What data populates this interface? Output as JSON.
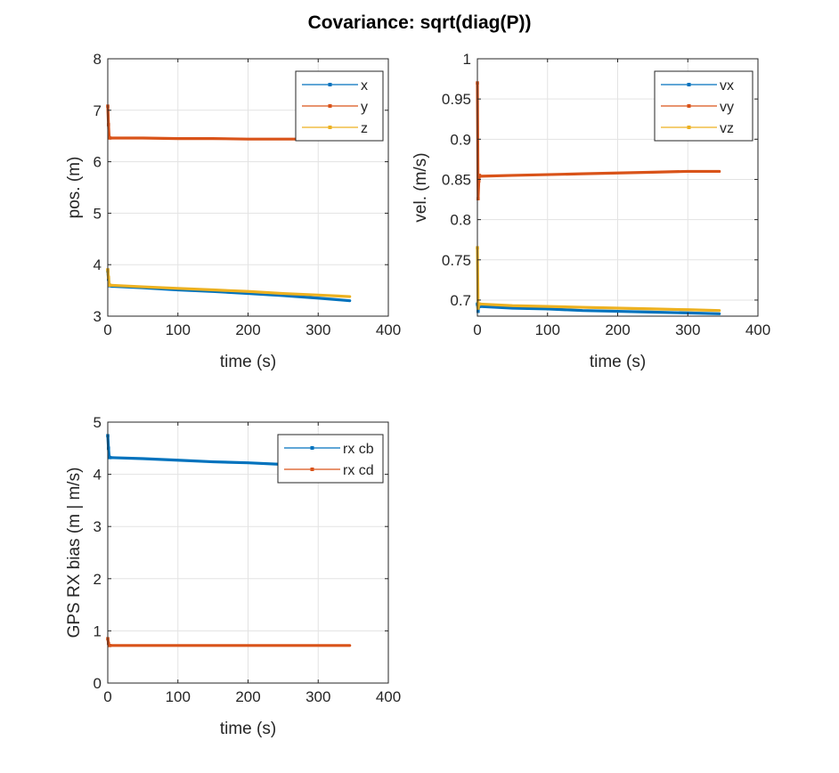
{
  "figure": {
    "title": "Covariance: sqrt(diag(P))"
  },
  "colors": {
    "blue": "#0072BD",
    "orange": "#D95319",
    "yellow": "#EDB120",
    "grid": "#e3e3e3",
    "axis": "#262626"
  },
  "chart_data": [
    {
      "type": "line",
      "xlabel": "time (s)",
      "ylabel": "pos. (m)",
      "xlim": [
        0,
        400
      ],
      "ylim": [
        3,
        8
      ],
      "xticks": [
        0,
        100,
        200,
        300,
        400
      ],
      "yticks": [
        3,
        4,
        5,
        6,
        7,
        8
      ],
      "grid": true,
      "legend_position": "top-right",
      "series": [
        {
          "name": "x",
          "color": "#0072BD",
          "x": [
            0,
            1,
            2,
            3,
            5,
            50,
            100,
            150,
            200,
            250,
            300,
            345
          ],
          "y": [
            3.88,
            3.72,
            3.6,
            3.59,
            3.58,
            3.55,
            3.51,
            3.48,
            3.44,
            3.4,
            3.35,
            3.3
          ]
        },
        {
          "name": "y",
          "color": "#D95319",
          "x": [
            0,
            1,
            2,
            3,
            5,
            50,
            100,
            150,
            200,
            250,
            300,
            345
          ],
          "y": [
            7.08,
            6.72,
            6.47,
            6.46,
            6.46,
            6.46,
            6.45,
            6.45,
            6.44,
            6.44,
            6.44,
            6.44
          ]
        },
        {
          "name": "z",
          "color": "#EDB120",
          "x": [
            0,
            1,
            2,
            3,
            5,
            50,
            100,
            150,
            200,
            250,
            300,
            345
          ],
          "y": [
            3.9,
            3.75,
            3.61,
            3.6,
            3.6,
            3.57,
            3.54,
            3.51,
            3.48,
            3.44,
            3.41,
            3.38
          ]
        }
      ]
    },
    {
      "type": "line",
      "xlabel": "time (s)",
      "ylabel": "vel. (m/s)",
      "xlim": [
        0,
        400
      ],
      "ylim": [
        0.68,
        1
      ],
      "xticks": [
        0,
        100,
        200,
        300,
        400
      ],
      "yticks": [
        0.7,
        0.75,
        0.8,
        0.85,
        0.9,
        0.95,
        1
      ],
      "grid": true,
      "legend_position": "top-right",
      "series": [
        {
          "name": "vx",
          "color": "#0072BD",
          "x": [
            0,
            1,
            2,
            3,
            5,
            50,
            100,
            150,
            200,
            250,
            300,
            345
          ],
          "y": [
            0.695,
            0.686,
            0.692,
            0.692,
            0.692,
            0.69,
            0.689,
            0.687,
            0.686,
            0.685,
            0.684,
            0.683
          ]
        },
        {
          "name": "vy",
          "color": "#D95319",
          "x": [
            0,
            1,
            2,
            3,
            5,
            50,
            100,
            150,
            200,
            250,
            300,
            345
          ],
          "y": [
            0.97,
            0.826,
            0.848,
            0.855,
            0.854,
            0.855,
            0.856,
            0.857,
            0.858,
            0.859,
            0.86,
            0.86
          ]
        },
        {
          "name": "vz",
          "color": "#EDB120",
          "x": [
            0,
            1,
            2,
            3,
            5,
            50,
            100,
            150,
            200,
            250,
            300,
            345
          ],
          "y": [
            0.765,
            0.69,
            0.695,
            0.695,
            0.695,
            0.693,
            0.692,
            0.691,
            0.69,
            0.689,
            0.688,
            0.687
          ]
        }
      ]
    },
    {
      "type": "line",
      "xlabel": "time (s)",
      "ylabel": "GPS RX bias (m | m/s)",
      "xlim": [
        0,
        400
      ],
      "ylim": [
        0,
        5
      ],
      "xticks": [
        0,
        100,
        200,
        300,
        400
      ],
      "yticks": [
        0,
        1,
        2,
        3,
        4,
        5
      ],
      "grid": true,
      "legend_position": "top-right",
      "series": [
        {
          "name": "rx cb",
          "color": "#0072BD",
          "x": [
            0,
            1,
            2,
            3,
            5,
            50,
            100,
            150,
            200,
            250,
            300,
            345
          ],
          "y": [
            4.74,
            4.5,
            4.33,
            4.32,
            4.32,
            4.3,
            4.27,
            4.24,
            4.22,
            4.19,
            4.16,
            4.14
          ]
        },
        {
          "name": "rx cd",
          "color": "#D95319",
          "x": [
            0,
            1,
            2,
            3,
            5,
            50,
            100,
            150,
            200,
            250,
            300,
            345
          ],
          "y": [
            0.85,
            0.76,
            0.72,
            0.72,
            0.72,
            0.72,
            0.72,
            0.72,
            0.72,
            0.72,
            0.72,
            0.72
          ]
        }
      ]
    }
  ]
}
